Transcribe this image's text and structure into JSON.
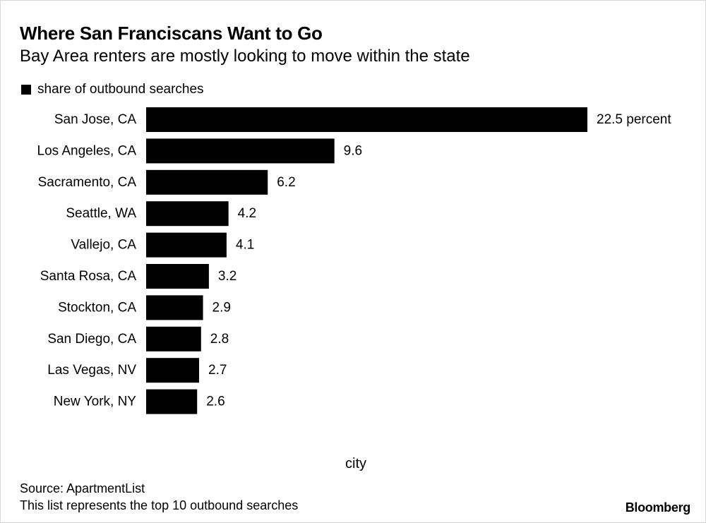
{
  "chart_data": {
    "type": "bar",
    "orientation": "horizontal",
    "title": "Where San Franciscans Want to Go",
    "subtitle": "Bay Area renters are mostly looking to move within the state",
    "legend": [
      "share of outbound searches"
    ],
    "legend_position": "top-left",
    "categories": [
      "San Jose, CA",
      "Los Angeles, CA",
      "Sacramento, CA",
      "Seattle, WA",
      "Vallejo, CA",
      "Santa Rosa, CA",
      "Stockton, CA",
      "San Diego, CA",
      "Las Vegas, NV",
      "New York, NY"
    ],
    "series": [
      {
        "name": "share of outbound searches",
        "values": [
          22.5,
          9.6,
          6.2,
          4.2,
          4.1,
          3.2,
          2.9,
          2.8,
          2.7,
          2.6
        ]
      }
    ],
    "data_labels": [
      "22.5 percent",
      "9.6",
      "6.2",
      "4.2",
      "4.1",
      "3.2",
      "2.9",
      "2.8",
      "2.7",
      "2.6"
    ],
    "xlabel": "city",
    "ylabel": "",
    "xlim": [
      0,
      22.5
    ],
    "grid": false,
    "bar_color": "#000000"
  },
  "footer": {
    "source": "Source: ApartmentList",
    "note": "This list represents the top 10 outbound searches",
    "brand": "Bloomberg"
  }
}
